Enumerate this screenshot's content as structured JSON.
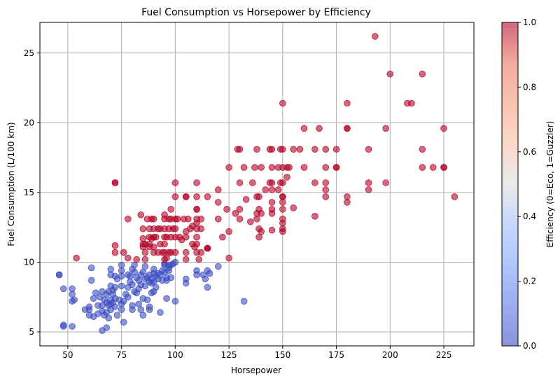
{
  "chart_data": {
    "type": "scatter",
    "title": "Fuel Consumption vs Horsepower by Efficiency",
    "xlabel": "Horsepower",
    "ylabel": "Fuel Consumption (L/100 km)",
    "xlim": [
      37,
      239
    ],
    "ylim": [
      4,
      27.2
    ],
    "xticks": [
      50,
      75,
      100,
      125,
      150,
      175,
      200,
      225
    ],
    "yticks": [
      5,
      10,
      15,
      20,
      25
    ],
    "grid": true,
    "colorbar": {
      "label": "Efficiency (0=Eco, 1=Guzzler)",
      "range": [
        0,
        1
      ],
      "ticks": [
        "0.0",
        "0.2",
        "0.4",
        "0.6",
        "0.8",
        "1.0"
      ],
      "colormap": "coolwarm"
    },
    "colors": {
      "eco": "#3b4cc0",
      "guzzler": "#b40426"
    },
    "series": [
      {
        "efficiency": 0,
        "points": [
          [
            46,
            9.1
          ],
          [
            46,
            9.1
          ],
          [
            48,
            5.5
          ],
          [
            48,
            5.4
          ],
          [
            48,
            8.1
          ],
          [
            52,
            8.1
          ],
          [
            52,
            7.7
          ],
          [
            52,
            7.2
          ],
          [
            53,
            7.3
          ],
          [
            52,
            5.4
          ],
          [
            58,
            6.6
          ],
          [
            60,
            6.2
          ],
          [
            60,
            6.8
          ],
          [
            60,
            6.6
          ],
          [
            61,
            8.7
          ],
          [
            61,
            9.6
          ],
          [
            62,
            6.1
          ],
          [
            62,
            7.4
          ],
          [
            63,
            7.8
          ],
          [
            64,
            6.9
          ],
          [
            64,
            6.3
          ],
          [
            65,
            7.5
          ],
          [
            66,
            7.9
          ],
          [
            66,
            6.9
          ],
          [
            66,
            6.5
          ],
          [
            66,
            5.1
          ],
          [
            67,
            7.3
          ],
          [
            67,
            6.2
          ],
          [
            68,
            7.7
          ],
          [
            68,
            7.1
          ],
          [
            68,
            6.4
          ],
          [
            68,
            5.3
          ],
          [
            69,
            7.9
          ],
          [
            69,
            6.9
          ],
          [
            69,
            6.0
          ],
          [
            70,
            7.0
          ],
          [
            70,
            7.3
          ],
          [
            70,
            8.3
          ],
          [
            70,
            9.1
          ],
          [
            70,
            9.5
          ],
          [
            70,
            6.6
          ],
          [
            71,
            7.7
          ],
          [
            71,
            8.0
          ],
          [
            71,
            7.1
          ],
          [
            72,
            9.0
          ],
          [
            72,
            8.2
          ],
          [
            72,
            7.4
          ],
          [
            72,
            6.8
          ],
          [
            73,
            8.8
          ],
          [
            73,
            6.2
          ],
          [
            74,
            7.3
          ],
          [
            75,
            9.4
          ],
          [
            75,
            9.0
          ],
          [
            75,
            9.8
          ],
          [
            75,
            8.3
          ],
          [
            75,
            6.6
          ],
          [
            75,
            7.0
          ],
          [
            76,
            7.2
          ],
          [
            76,
            5.7
          ],
          [
            77,
            7.7
          ],
          [
            78,
            8.2
          ],
          [
            78,
            9.1
          ],
          [
            78,
            7.5
          ],
          [
            79,
            8.6
          ],
          [
            79,
            9.0
          ],
          [
            80,
            9.5
          ],
          [
            80,
            8.4
          ],
          [
            80,
            6.9
          ],
          [
            80,
            6.6
          ],
          [
            81,
            9.8
          ],
          [
            81,
            9.3
          ],
          [
            81,
            7.9
          ],
          [
            82,
            8.9
          ],
          [
            82,
            7.8
          ],
          [
            83,
            8.7
          ],
          [
            83,
            8.1
          ],
          [
            83,
            7.0
          ],
          [
            84,
            9.1
          ],
          [
            84,
            8.4
          ],
          [
            84,
            6.6
          ],
          [
            85,
            9.3
          ],
          [
            85,
            7.4
          ],
          [
            85,
            6.2
          ],
          [
            86,
            9.7
          ],
          [
            86,
            8.8
          ],
          [
            86,
            8.3
          ],
          [
            87,
            8.9
          ],
          [
            87,
            7.3
          ],
          [
            88,
            9.1
          ],
          [
            88,
            8.6
          ],
          [
            88,
            6.8
          ],
          [
            88,
            6.6
          ],
          [
            89,
            8.8
          ],
          [
            89,
            8.5
          ],
          [
            89,
            7.8
          ],
          [
            90,
            9.5
          ],
          [
            90,
            9.2
          ],
          [
            90,
            8.6
          ],
          [
            90,
            7.9
          ],
          [
            91,
            9.0
          ],
          [
            91,
            8.2
          ],
          [
            92,
            9.2
          ],
          [
            92,
            8.8
          ],
          [
            93,
            6.4
          ],
          [
            93,
            9.1
          ],
          [
            94,
            9.4
          ],
          [
            94,
            8.7
          ],
          [
            95,
            9.8
          ],
          [
            95,
            9.3
          ],
          [
            95,
            9.9
          ],
          [
            96,
            8.9
          ],
          [
            96,
            7.4
          ],
          [
            96,
            8.7
          ],
          [
            97,
            9.6
          ],
          [
            97,
            9.4
          ],
          [
            97,
            9.8
          ],
          [
            98,
            9.8
          ],
          [
            98,
            8.9
          ],
          [
            99,
            9.9
          ],
          [
            100,
            7.2
          ],
          [
            100,
            10.0
          ],
          [
            105,
            8.8
          ],
          [
            105,
            8.5
          ],
          [
            110,
            9.4
          ],
          [
            110,
            9.1
          ],
          [
            113,
            9.1
          ],
          [
            114,
            8.8
          ],
          [
            115,
            9.4
          ],
          [
            115,
            8.2
          ],
          [
            116,
            9.2
          ],
          [
            120,
            9.7
          ],
          [
            132,
            7.2
          ]
        ]
      },
      {
        "efficiency": 1,
        "points": [
          [
            54,
            10.3
          ],
          [
            72,
            15.7
          ],
          [
            72,
            15.7
          ],
          [
            72,
            11.2
          ],
          [
            72,
            10.7
          ],
          [
            76,
            10.7
          ],
          [
            78,
            10.3
          ],
          [
            78,
            13.1
          ],
          [
            82,
            10.2
          ],
          [
            84,
            13.4
          ],
          [
            85,
            12.4
          ],
          [
            85,
            11.7
          ],
          [
            85,
            11.3
          ],
          [
            85,
            11.1
          ],
          [
            86,
            10.7
          ],
          [
            86,
            11.3
          ],
          [
            86,
            10.2
          ],
          [
            87,
            13.1
          ],
          [
            88,
            11.8
          ],
          [
            88,
            11.3
          ],
          [
            88,
            11.1
          ],
          [
            88,
            12.4
          ],
          [
            89,
            13.1
          ],
          [
            89,
            11.7
          ],
          [
            90,
            13.1
          ],
          [
            90,
            12.4
          ],
          [
            90,
            11.8
          ],
          [
            90,
            11.1
          ],
          [
            90,
            10.7
          ],
          [
            91,
            11.8
          ],
          [
            92,
            12.4
          ],
          [
            92,
            10.7
          ],
          [
            93,
            12.4
          ],
          [
            93,
            11.3
          ],
          [
            94,
            10.7
          ],
          [
            95,
            13.4
          ],
          [
            95,
            13.1
          ],
          [
            95,
            12.4
          ],
          [
            95,
            11.8
          ],
          [
            95,
            11.3
          ],
          [
            95,
            10.7
          ],
          [
            95,
            10.2
          ],
          [
            96,
            10.3
          ],
          [
            96,
            11.8
          ],
          [
            97,
            13.1
          ],
          [
            97,
            12.4
          ],
          [
            97,
            10.7
          ],
          [
            98,
            13.8
          ],
          [
            98,
            13.1
          ],
          [
            98,
            11.8
          ],
          [
            98,
            10.7
          ],
          [
            99,
            12.4
          ],
          [
            100,
            15.7
          ],
          [
            100,
            14.7
          ],
          [
            100,
            13.1
          ],
          [
            100,
            12.4
          ],
          [
            100,
            11.8
          ],
          [
            100,
            10.7
          ],
          [
            101,
            13.1
          ],
          [
            102,
            11.8
          ],
          [
            103,
            11.6
          ],
          [
            104,
            13.1
          ],
          [
            105,
            14.7
          ],
          [
            105,
            14.7
          ],
          [
            105,
            12.2
          ],
          [
            105,
            11.8
          ],
          [
            105,
            10.7
          ],
          [
            105,
            10.2
          ],
          [
            106,
            13.1
          ],
          [
            107,
            12.4
          ],
          [
            108,
            12.6
          ],
          [
            108,
            11.3
          ],
          [
            109,
            11.1
          ],
          [
            110,
            15.7
          ],
          [
            110,
            14.7
          ],
          [
            110,
            13.8
          ],
          [
            110,
            13.8
          ],
          [
            110,
            13.1
          ],
          [
            110,
            12.8
          ],
          [
            110,
            12.4
          ],
          [
            110,
            11.8
          ],
          [
            110,
            11.3
          ],
          [
            110,
            10.7
          ],
          [
            111,
            10.2
          ],
          [
            112,
            13.1
          ],
          [
            112,
            12.4
          ],
          [
            112,
            10.7
          ],
          [
            115,
            14.7
          ],
          [
            115,
            11.0
          ],
          [
            115,
            11.0
          ],
          [
            115,
            11.0
          ],
          [
            120,
            15.2
          ],
          [
            120,
            14.3
          ],
          [
            120,
            13.1
          ],
          [
            122,
            11.8
          ],
          [
            124,
            13.8
          ],
          [
            125,
            16.8
          ],
          [
            125,
            12.2
          ],
          [
            125,
            10.3
          ],
          [
            128,
            13.5
          ],
          [
            129,
            18.1
          ],
          [
            130,
            18.1
          ],
          [
            130,
            15.7
          ],
          [
            130,
            13.8
          ],
          [
            130,
            13.1
          ],
          [
            132,
            16.8
          ],
          [
            133,
            14.5
          ],
          [
            135,
            12.9
          ],
          [
            136,
            15.7
          ],
          [
            137,
            16.8
          ],
          [
            138,
            18.1
          ],
          [
            138,
            14.7
          ],
          [
            138,
            13.5
          ],
          [
            138,
            13.1
          ],
          [
            139,
            14.7
          ],
          [
            139,
            13.8
          ],
          [
            139,
            12.4
          ],
          [
            139,
            11.8
          ],
          [
            140,
            16.8
          ],
          [
            140,
            13.5
          ],
          [
            140,
            12.2
          ],
          [
            142,
            15.2
          ],
          [
            144,
            18.1
          ],
          [
            144,
            15.7
          ],
          [
            145,
            18.1
          ],
          [
            145,
            16.8
          ],
          [
            145,
            15.7
          ],
          [
            145,
            15.2
          ],
          [
            145,
            14.3
          ],
          [
            145,
            13.8
          ],
          [
            145,
            13.5
          ],
          [
            145,
            12.3
          ],
          [
            148,
            16.8
          ],
          [
            148,
            15.2
          ],
          [
            149,
            18.1
          ],
          [
            149,
            15.7
          ],
          [
            150,
            21.4
          ],
          [
            150,
            18.1
          ],
          [
            150,
            16.8
          ],
          [
            150,
            15.7
          ],
          [
            150,
            14.7
          ],
          [
            150,
            14.7
          ],
          [
            150,
            14.3
          ],
          [
            150,
            13.8
          ],
          [
            150,
            13.1
          ],
          [
            150,
            12.8
          ],
          [
            150,
            12.4
          ],
          [
            150,
            12.2
          ],
          [
            152,
            16.8
          ],
          [
            152,
            16.1
          ],
          [
            153,
            16.8
          ],
          [
            155,
            18.1
          ],
          [
            155,
            13.9
          ],
          [
            158,
            18.1
          ],
          [
            160,
            19.6
          ],
          [
            160,
            16.8
          ],
          [
            165,
            18.1
          ],
          [
            165,
            15.7
          ],
          [
            165,
            13.3
          ],
          [
            167,
            19.6
          ],
          [
            170,
            18.1
          ],
          [
            170,
            16.8
          ],
          [
            170,
            15.7
          ],
          [
            170,
            15.2
          ],
          [
            170,
            14.7
          ],
          [
            175,
            18.1
          ],
          [
            175,
            16.8
          ],
          [
            175,
            16.8
          ],
          [
            180,
            21.4
          ],
          [
            180,
            19.6
          ],
          [
            180,
            19.6
          ],
          [
            180,
            14.7
          ],
          [
            180,
            14.3
          ],
          [
            190,
            18.1
          ],
          [
            190,
            15.7
          ],
          [
            190,
            15.2
          ],
          [
            193,
            26.2
          ],
          [
            198,
            19.6
          ],
          [
            198,
            15.7
          ],
          [
            200,
            23.5
          ],
          [
            208,
            21.4
          ],
          [
            210,
            21.4
          ],
          [
            215,
            23.5
          ],
          [
            215,
            18.1
          ],
          [
            215,
            16.8
          ],
          [
            220,
            16.8
          ],
          [
            225,
            19.6
          ],
          [
            225,
            16.8
          ],
          [
            225,
            16.8
          ],
          [
            230,
            14.7
          ]
        ]
      }
    ]
  }
}
